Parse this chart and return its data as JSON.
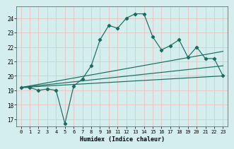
{
  "title": "",
  "xlabel": "Humidex (Indice chaleur)",
  "ylabel": "",
  "bg_color": "#d4eeed",
  "grid_color": "#e8c8c8",
  "line_color": "#1a6b60",
  "ylim": [
    16.5,
    24.8
  ],
  "xlim": [
    -0.5,
    23.5
  ],
  "yticks": [
    17,
    18,
    19,
    20,
    21,
    22,
    23,
    24
  ],
  "xticks": [
    0,
    1,
    2,
    3,
    4,
    5,
    6,
    7,
    8,
    9,
    10,
    11,
    12,
    13,
    14,
    15,
    16,
    17,
    18,
    19,
    20,
    21,
    22,
    23
  ],
  "line1_x": [
    0,
    1,
    2,
    3,
    4,
    5,
    6,
    7,
    8,
    9,
    10,
    11,
    12,
    13,
    14,
    15,
    16,
    17,
    18,
    19,
    20,
    21,
    22,
    23
  ],
  "line1_y": [
    19.2,
    19.2,
    19.0,
    19.1,
    19.0,
    16.7,
    19.3,
    19.8,
    20.7,
    22.5,
    23.5,
    23.3,
    24.0,
    24.3,
    24.3,
    22.7,
    21.8,
    22.1,
    22.5,
    21.3,
    22.0,
    21.2,
    21.2,
    20.0
  ],
  "line2_x": [
    0,
    23
  ],
  "line2_y": [
    19.2,
    20.0
  ],
  "line3_x": [
    0,
    23
  ],
  "line3_y": [
    19.2,
    20.7
  ],
  "line4_x": [
    0,
    23
  ],
  "line4_y": [
    19.2,
    21.7
  ]
}
